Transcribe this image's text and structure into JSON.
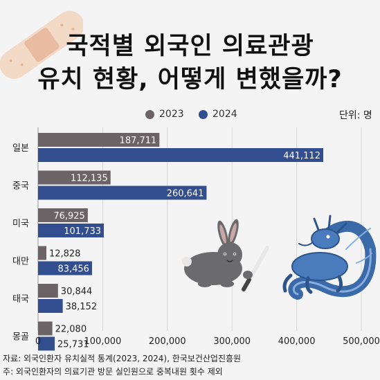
{
  "title_line1": "국적별 외국인 의료관광",
  "title_line2": "유치 현황, 어떻게 변했을까?",
  "unit_label": "단위: 명",
  "source_line": "자료: 외국인환자 유치실적 통계(2023, 2024), 한국보건산업진흥원",
  "note_line": "주: 외국인환자의 의료기관 방문 실인원으로 중복내원 횟수 제외",
  "colors": {
    "series_2023": "#6b6366",
    "series_2024": "#334e8f",
    "background": "#f4f4f4"
  },
  "chart_data": {
    "type": "bar",
    "orientation": "horizontal",
    "categories": [
      "일본",
      "중국",
      "미국",
      "대만",
      "태국",
      "몽골"
    ],
    "series": [
      {
        "name": "2023",
        "values": [
          187711,
          112135,
          76925,
          12828,
          30844,
          22080
        ]
      },
      {
        "name": "2024",
        "values": [
          441112,
          260641,
          101733,
          83456,
          38152,
          25731
        ]
      }
    ],
    "value_labels": {
      "2023": [
        "187,711",
        "112,135",
        "76,925",
        "12,828",
        "30,844",
        "22,080"
      ],
      "2024": [
        "441,112",
        "260,641",
        "101,733",
        "83,456",
        "38,152",
        "25,731"
      ]
    },
    "xticks": [
      0,
      100000,
      200000,
      300000,
      400000,
      500000
    ],
    "xtick_labels": [
      "0",
      "100,000",
      "200,000",
      "300,000",
      "400,000",
      "500,000"
    ],
    "xlim": [
      0,
      500000
    ],
    "legend_placement": "top"
  }
}
